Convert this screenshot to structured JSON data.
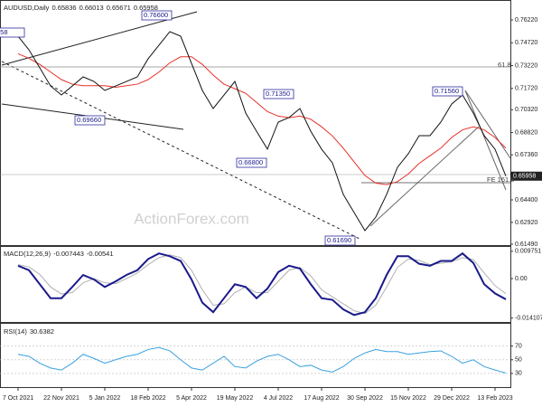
{
  "chart_data": [
    {
      "type": "line",
      "title": "AUDUSD,Daily",
      "header_values": [
        0.65836,
        0.66013,
        0.65671,
        0.65958
      ],
      "watermark": "ActionForex.com",
      "categories": [
        "7 Oct 2021",
        null,
        null,
        null,
        "22 Nov 2021",
        null,
        null,
        null,
        "5 Jan 2022",
        null,
        null,
        null,
        "18 Feb 2022",
        null,
        null,
        null,
        "5 Apr 2022",
        null,
        null,
        null,
        "19 May 2022",
        null,
        null,
        null,
        "4 Jul 2022",
        null,
        null,
        null,
        "17 Aug 2022",
        null,
        null,
        null,
        "30 Sep 2022",
        null,
        null,
        null,
        "15 Nov 2022",
        null,
        null,
        null,
        "29 Dec 2022",
        null,
        null,
        null,
        "13 Feb 2023",
        null
      ],
      "series": [
        {
          "name": "AUDUSD",
          "color": "#111111",
          "values": [
            0.7515,
            0.7426,
            0.7307,
            0.7188,
            0.7129,
            0.7188,
            0.7248,
            0.7218,
            0.7159,
            0.7188,
            0.7218,
            0.7248,
            0.7367,
            0.7456,
            0.7545,
            0.7515,
            0.7337,
            0.7159,
            0.704,
            0.7129,
            0.7218,
            0.701,
            0.6891,
            0.6773,
            0.6951,
            0.6981,
            0.704,
            0.6891,
            0.6773,
            0.6683,
            0.6476,
            0.6357,
            0.6238,
            0.6327,
            0.6476,
            0.6654,
            0.6743,
            0.6862,
            0.6862,
            0.6951,
            0.707,
            0.7129,
            0.701,
            0.6862,
            0.6773,
            0.6596
          ]
        },
        {
          "name": "MA",
          "color": "#e8302a",
          "values": [
            0.74,
            0.737,
            0.733,
            0.728,
            0.723,
            0.72,
            0.719,
            0.719,
            0.719,
            0.718,
            0.719,
            0.72,
            0.723,
            0.728,
            0.734,
            0.738,
            0.738,
            0.733,
            0.726,
            0.72,
            0.717,
            0.714,
            0.708,
            0.702,
            0.699,
            0.698,
            0.699,
            0.697,
            0.692,
            0.686,
            0.678,
            0.669,
            0.66,
            0.655,
            0.654,
            0.656,
            0.661,
            0.668,
            0.673,
            0.678,
            0.685,
            0.69,
            0.692,
            0.69,
            0.685,
            0.678
          ]
        }
      ],
      "last_price": 0.65958,
      "annotations": [
        "558",
        "0.76600",
        "0.69660",
        "0.71350",
        "0.66800",
        "0.61690",
        "0.71560",
        "61.8",
        "FE 161.8"
      ],
      "ylim": [
        0.6137,
        0.7741
      ],
      "yticks": [
        {
          "value": 0.7622,
          "label": "0.76220"
        },
        {
          "value": 0.7472,
          "label": "0.74720"
        },
        {
          "value": 0.7322,
          "label": "0.73220"
        },
        {
          "value": 0.7172,
          "label": "0.71720"
        },
        {
          "value": 0.7032,
          "label": "0.70320"
        },
        {
          "value": 0.6882,
          "label": "0.68820"
        },
        {
          "value": 0.6736,
          "label": "0.67360"
        },
        {
          "value": 0.644,
          "label": "0.64400"
        },
        {
          "value": 0.6292,
          "label": "0.62920"
        },
        {
          "value": 0.6149,
          "label": "0.61490"
        }
      ]
    },
    {
      "type": "line",
      "title": "MACD(12,26,9)",
      "header_values": [
        -0.007443,
        -0.00541
      ],
      "series": [
        {
          "name": "MACD",
          "color": "#1a1a8c",
          "values": [
            0.0046,
            0.003,
            -0.002,
            -0.007,
            -0.007,
            -0.003,
            0.0013,
            -0.0003,
            -0.003,
            -0.001,
            0.0013,
            0.003,
            0.007,
            0.009,
            0.008,
            0.0063,
            -0.0003,
            -0.0086,
            -0.012,
            -0.007,
            -0.002,
            -0.003,
            -0.007,
            -0.0036,
            0.0023,
            0.0046,
            0.0036,
            -0.002,
            -0.007,
            -0.0076,
            -0.011,
            -0.013,
            -0.012,
            -0.007,
            0.0013,
            0.008,
            0.008,
            0.0053,
            0.0046,
            0.0063,
            0.0063,
            0.009,
            0.0056,
            -0.002,
            -0.0053,
            -0.0074
          ]
        },
        {
          "name": "Signal",
          "color": "#b0b0b0",
          "values": [
            0.005,
            0.0042,
            0.0015,
            -0.003,
            -0.0055,
            -0.005,
            -0.0015,
            0,
            -0.0015,
            -0.0018,
            0,
            0.002,
            0.005,
            0.0075,
            0.0085,
            0.0075,
            0.003,
            -0.004,
            -0.0095,
            -0.009,
            -0.005,
            -0.003,
            -0.005,
            -0.005,
            -0.001,
            0.003,
            0.004,
            0.001,
            -0.004,
            -0.0065,
            -0.009,
            -0.0115,
            -0.0125,
            -0.0095,
            -0.003,
            0.004,
            0.007,
            0.0065,
            0.005,
            0.0055,
            0.006,
            0.0075,
            0.0068,
            0.002,
            -0.0025,
            -0.0054
          ]
        }
      ],
      "ylim": [
        -0.0155,
        0.011
      ],
      "yticks": [
        0.009751,
        {
          "value": 0,
          "label": "0.00"
        },
        -0.014107
      ]
    },
    {
      "type": "line",
      "title": "RSI(14)",
      "header_values": [
        30.6382
      ],
      "series": [
        {
          "name": "RSI",
          "color": "#3aa0e0",
          "values": [
            58,
            55,
            45,
            38,
            35,
            45,
            58,
            52,
            45,
            50,
            55,
            58,
            65,
            68,
            63,
            50,
            38,
            35,
            45,
            55,
            40,
            38,
            48,
            55,
            58,
            50,
            40,
            42,
            35,
            32,
            40,
            52,
            60,
            65,
            62,
            62,
            58,
            60,
            62,
            63,
            55,
            45,
            50,
            40,
            35,
            30.6
          ]
        }
      ],
      "ylim": [
        10,
        100
      ],
      "yticks": [
        70,
        50,
        30
      ]
    }
  ]
}
